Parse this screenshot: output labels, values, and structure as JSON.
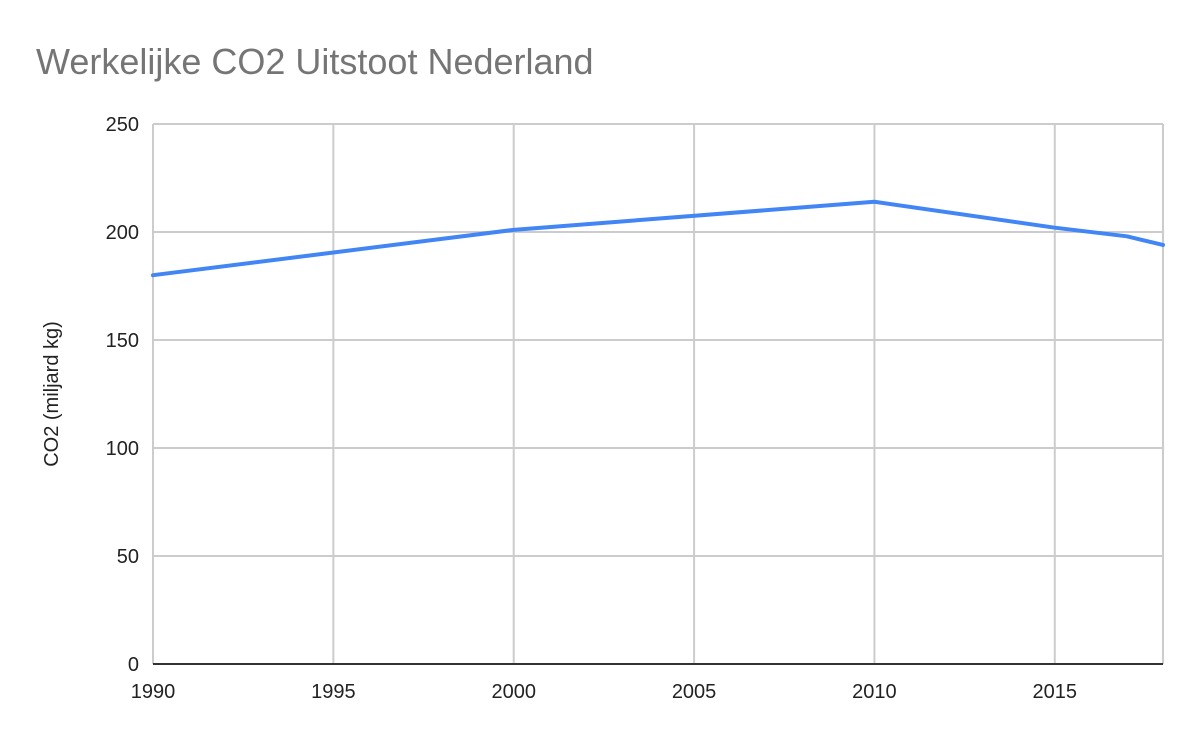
{
  "chart_data": {
    "type": "line",
    "title": "Werkelijke CO2 Uitstoot Nederland",
    "xlabel": "",
    "ylabel": "CO2 (miljard kg)",
    "xlim": [
      1990,
      2018
    ],
    "ylim": [
      0,
      250
    ],
    "x_ticks": [
      1990,
      1995,
      2000,
      2005,
      2010,
      2015
    ],
    "y_ticks": [
      0,
      50,
      100,
      150,
      200,
      250
    ],
    "grid": true,
    "series": [
      {
        "color": "#4285f4",
        "points": [
          {
            "x": 1990,
            "y": 180
          },
          {
            "x": 2000,
            "y": 201
          },
          {
            "x": 2010,
            "y": 214
          },
          {
            "x": 2015,
            "y": 202
          },
          {
            "x": 2017,
            "y": 198
          },
          {
            "x": 2018,
            "y": 194
          }
        ]
      }
    ]
  }
}
